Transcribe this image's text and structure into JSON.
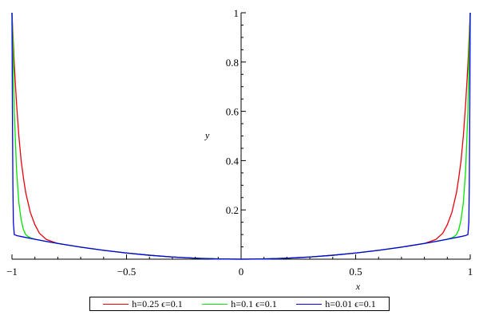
{
  "chart_data": {
    "type": "line",
    "title": "",
    "xlabel": "x",
    "ylabel": "y",
    "xlim": [
      -1,
      1
    ],
    "ylim": [
      0,
      1
    ],
    "x_ticks": [
      -1,
      -0.5,
      0,
      0.5,
      1
    ],
    "x_tick_labels": [
      "−1",
      "−0.5",
      "0",
      "0.5",
      "1"
    ],
    "y_ticks": [
      0.2,
      0.4,
      0.6,
      0.8,
      1
    ],
    "y_tick_labels": [
      "0.2",
      "0.4",
      "0.6",
      "0.8",
      "1"
    ],
    "grid": false,
    "legend_position": "bottom",
    "series": [
      {
        "name": "h=0.25 ϵ=0.1",
        "color": "#e8000b",
        "x": [
          -1,
          -0.99,
          -0.98,
          -0.97,
          -0.96,
          -0.95,
          -0.94,
          -0.92,
          -0.9,
          -0.88,
          -0.85,
          -0.82,
          -0.8,
          -0.7,
          -0.6,
          -0.5,
          -0.4,
          -0.3,
          -0.2,
          -0.1,
          0,
          0.1,
          0.2,
          0.3,
          0.4,
          0.5,
          0.6,
          0.7,
          0.8,
          0.82,
          0.85,
          0.88,
          0.9,
          0.92,
          0.94,
          0.95,
          0.96,
          0.97,
          0.98,
          0.99,
          1
        ],
        "y": [
          1,
          0.79,
          0.63,
          0.5,
          0.4,
          0.33,
          0.27,
          0.19,
          0.14,
          0.105,
          0.08,
          0.07,
          0.064,
          0.049,
          0.036,
          0.025,
          0.016,
          0.009,
          0.004,
          0.001,
          0,
          0.001,
          0.004,
          0.009,
          0.016,
          0.025,
          0.036,
          0.049,
          0.064,
          0.07,
          0.08,
          0.105,
          0.14,
          0.19,
          0.27,
          0.33,
          0.4,
          0.5,
          0.63,
          0.79,
          1
        ]
      },
      {
        "name": "h=0.1 ϵ=0.1",
        "color": "#00e400",
        "x": [
          -1,
          -0.995,
          -0.99,
          -0.98,
          -0.97,
          -0.96,
          -0.95,
          -0.94,
          -0.93,
          -0.92,
          -0.9,
          -0.85,
          -0.8,
          -0.7,
          -0.6,
          -0.5,
          -0.4,
          -0.3,
          -0.2,
          -0.1,
          0,
          0.1,
          0.2,
          0.3,
          0.4,
          0.5,
          0.6,
          0.7,
          0.8,
          0.85,
          0.9,
          0.92,
          0.93,
          0.94,
          0.95,
          0.96,
          0.97,
          0.98,
          0.99,
          0.995,
          1
        ],
        "y": [
          1,
          0.85,
          0.6,
          0.36,
          0.23,
          0.16,
          0.12,
          0.1,
          0.092,
          0.087,
          0.081,
          0.072,
          0.064,
          0.049,
          0.036,
          0.025,
          0.016,
          0.009,
          0.004,
          0.001,
          0,
          0.001,
          0.004,
          0.009,
          0.016,
          0.025,
          0.036,
          0.049,
          0.064,
          0.072,
          0.081,
          0.087,
          0.092,
          0.1,
          0.12,
          0.16,
          0.23,
          0.36,
          0.6,
          0.85,
          1
        ]
      },
      {
        "name": "h=0.01 ϵ=0.1",
        "color": "#0000e6",
        "x": [
          -1,
          -0.998,
          -0.996,
          -0.994,
          -0.99,
          -0.98,
          -0.95,
          -0.9,
          -0.85,
          -0.8,
          -0.7,
          -0.6,
          -0.5,
          -0.4,
          -0.3,
          -0.2,
          -0.1,
          0,
          0.1,
          0.2,
          0.3,
          0.4,
          0.5,
          0.6,
          0.7,
          0.8,
          0.85,
          0.9,
          0.95,
          0.98,
          0.99,
          0.994,
          0.996,
          0.998,
          1
        ],
        "y": [
          1,
          0.6,
          0.3,
          0.15,
          0.1,
          0.096,
          0.09,
          0.081,
          0.072,
          0.064,
          0.049,
          0.036,
          0.025,
          0.016,
          0.009,
          0.004,
          0.001,
          0,
          0.001,
          0.004,
          0.009,
          0.016,
          0.025,
          0.036,
          0.049,
          0.064,
          0.072,
          0.081,
          0.09,
          0.096,
          0.1,
          0.15,
          0.3,
          0.6,
          1
        ]
      }
    ]
  }
}
